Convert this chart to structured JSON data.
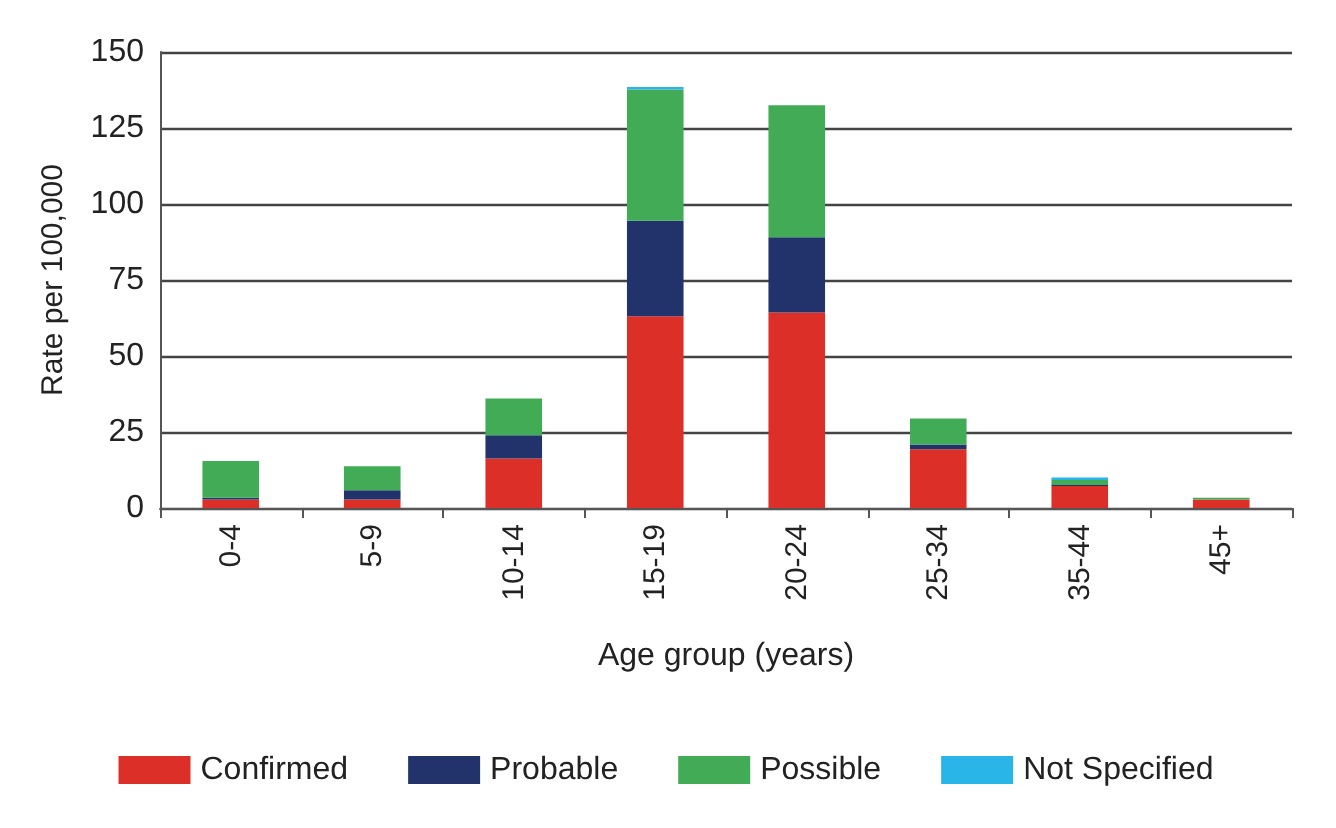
{
  "chart_data": {
    "type": "bar",
    "stacked": true,
    "xlabel": "Age group (years)",
    "ylabel": "Rate per 100,000",
    "categories": [
      "0-4",
      "5-9",
      "10-14",
      "15-19",
      "20-24",
      "25-34",
      "35-44",
      "45+"
    ],
    "series": [
      {
        "name": "Confirmed",
        "color": "#dc2f27",
        "values": [
          2.8,
          2.8,
          16.3,
          63.1,
          64.3,
          19.3,
          7.2,
          2.8
        ]
      },
      {
        "name": "Probable",
        "color": "#22336b",
        "values": [
          0.6,
          3.0,
          7.6,
          31.4,
          24.8,
          1.6,
          0.4,
          0
        ]
      },
      {
        "name": "Possible",
        "color": "#41ab56",
        "values": [
          12.1,
          7.9,
          12.1,
          43.2,
          43.4,
          8.5,
          1.6,
          0.6
        ]
      },
      {
        "name": "Not Specified",
        "color": "#29b5e8",
        "values": [
          0,
          0,
          0,
          0.8,
          0,
          0,
          0.8,
          0
        ]
      }
    ],
    "ylim": [
      0,
      150
    ],
    "yticks": [
      0,
      25,
      50,
      75,
      100,
      125,
      150
    ],
    "grid": "y",
    "legend": "bottom"
  }
}
